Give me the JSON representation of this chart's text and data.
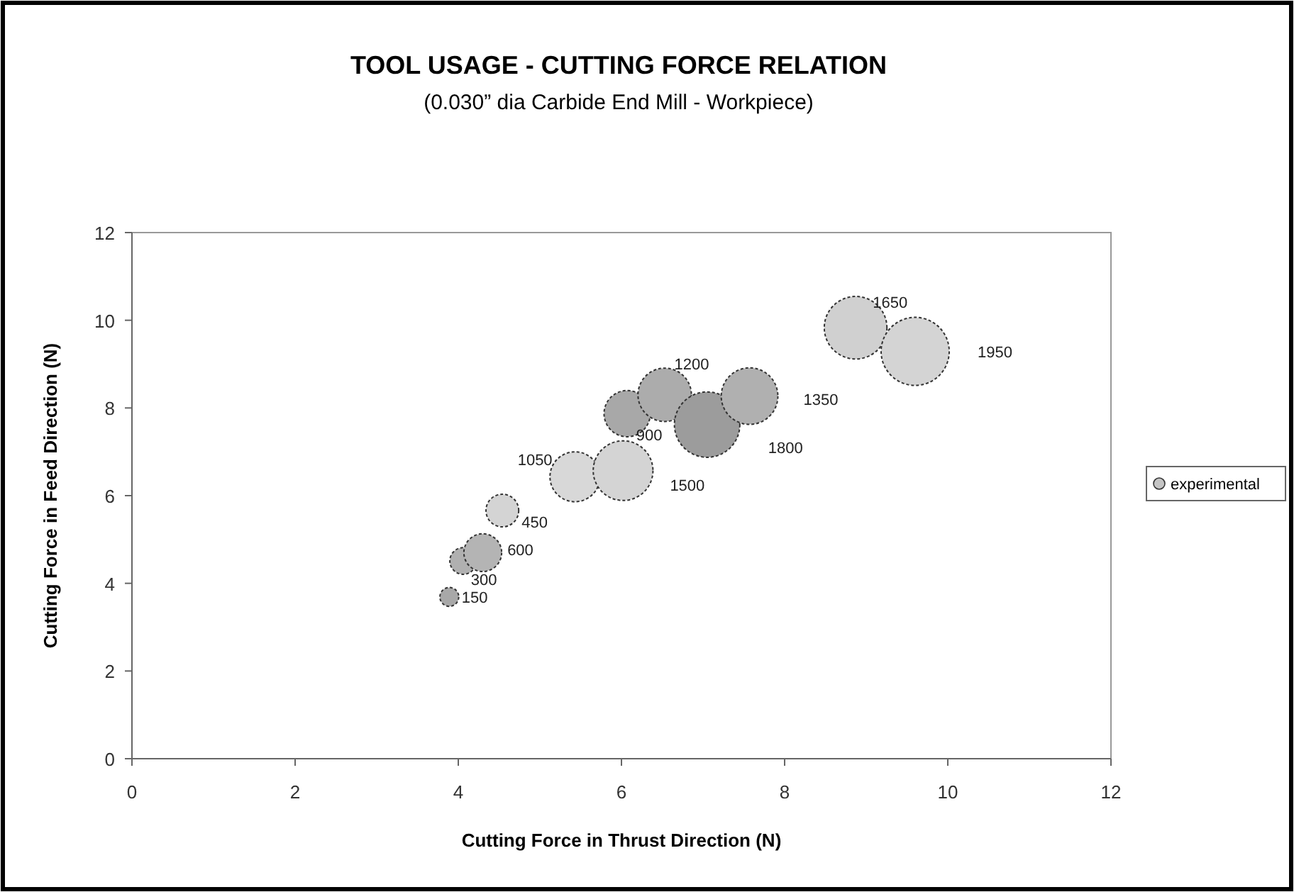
{
  "chart_data": {
    "type": "bubble",
    "title": "TOOL USAGE - CUTTING FORCE RELATION",
    "subtitle": "(0.030” dia Carbide End Mill - Workpiece)",
    "xlabel": "Cutting Force in Thrust Direction (N)",
    "ylabel": "Cutting Force in Feed Direction (N)",
    "xlim": [
      0,
      12
    ],
    "xticks": [
      0,
      2,
      4,
      6,
      8,
      10,
      12
    ],
    "ylim": [
      0,
      12
    ],
    "yticks": [
      0,
      2,
      4,
      6,
      8,
      10,
      12
    ],
    "grid": false,
    "legend": "right",
    "series": [
      {
        "name": "experimental",
        "color": "#c4c4c4",
        "x": [
          3.89,
          4.06,
          4.3,
          4.54,
          5.43,
          6.02,
          6.07,
          6.53,
          7.05,
          7.57,
          8.87,
          9.6
        ],
        "values": [
          3.69,
          4.51,
          4.7,
          5.66,
          6.43,
          6.57,
          7.87,
          8.3,
          7.62,
          8.27,
          9.83,
          9.29
        ],
        "sizes": [
          150,
          300,
          600,
          450,
          1050,
          1500,
          900,
          1200,
          1800,
          1350,
          1650,
          1950
        ],
        "value_labels": [
          "150",
          "300",
          "600",
          "450",
          "1050",
          "1500",
          "900",
          "1200",
          "1800",
          "1350",
          "1650",
          "1950"
        ],
        "colors": [
          "#a8a8a8",
          "#b0b0b0",
          "#b4b4b4",
          "#d4d4d4",
          "#d8d8d8",
          "#d4d4d4",
          "#a8a8a8",
          "#acacac",
          "#9c9c9c",
          "#b0b0b0",
          "#d0d0d0",
          "#d4d4d4"
        ]
      }
    ]
  }
}
